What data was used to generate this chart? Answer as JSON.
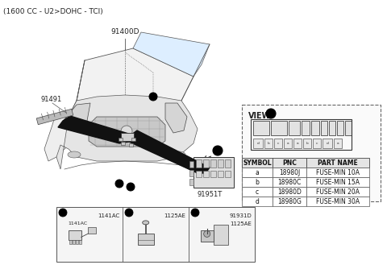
{
  "title": "(1600 CC - U2>DOHC - TCI)",
  "bg_color": "#ffffff",
  "label_91400D": "91400D",
  "label_91491": "91491",
  "label_91951T": "91951T",
  "view_label": "VIEW",
  "view_circle": "A",
  "table_headers": [
    "SYMBOL",
    "PNC",
    "PART NAME"
  ],
  "table_rows": [
    [
      "a",
      "18980J",
      "FUSE-MIN 10A"
    ],
    [
      "b",
      "18980C",
      "FUSE-MIN 15A"
    ],
    [
      "c",
      "18980D",
      "FUSE-MIN 20A"
    ],
    [
      "d",
      "18980G",
      "FUSE-MIN 30A"
    ]
  ],
  "bottom_labels": [
    "a",
    "b",
    "c"
  ],
  "bottom_parts_line1": [
    "1141AC",
    "1125AE",
    "91931D"
  ],
  "bottom_parts_line2": [
    "",
    "",
    "1125AE"
  ],
  "line_color": "#555555",
  "thick_color": "#111111",
  "bg_box": "#f9f9f9",
  "tbl_header_bg": "#e8e8e8",
  "tbl_cell_bg": "#ffffff"
}
